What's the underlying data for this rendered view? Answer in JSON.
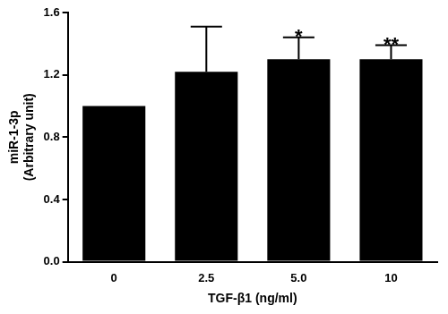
{
  "chart_data": {
    "type": "bar",
    "categories": [
      "0",
      "2.5",
      "5.0",
      "10"
    ],
    "values": [
      1.0,
      1.22,
      1.3,
      1.3
    ],
    "errors": [
      null,
      0.29,
      0.14,
      0.09
    ],
    "significance": [
      null,
      null,
      "*",
      "**"
    ],
    "color": "#000000",
    "xlabel": "TGF-β1 (ng/ml)",
    "ylabel": [
      "miR-1-3p",
      "(Arbitrary unit)"
    ],
    "ylim": [
      0,
      1.6
    ],
    "yticks": [
      {
        "value": 0,
        "label": "0.0"
      },
      0.4,
      0.8,
      1.2,
      1.6
    ],
    "grid": false
  }
}
